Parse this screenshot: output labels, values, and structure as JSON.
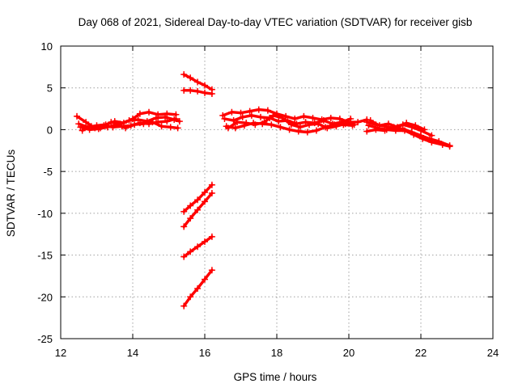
{
  "chart_data": {
    "type": "scatter",
    "title": "Day 068 of 2021, Sidereal Day-to-day VTEC variation (SDTVAR) for receiver gisb",
    "xlabel": "GPS time / hours",
    "ylabel": "SDTVAR / TECUs",
    "xlim": [
      12,
      24
    ],
    "ylim": [
      -25,
      10
    ],
    "xticks": [
      12,
      14,
      16,
      18,
      20,
      22,
      24
    ],
    "yticks": [
      -25,
      -20,
      -15,
      -10,
      -5,
      0,
      5,
      10
    ],
    "grid": true,
    "legend": "none",
    "marker": "plus",
    "colors": {
      "series": "#ff0000",
      "grid": "#a0a0a0",
      "frame": "#000000"
    },
    "series": [
      {
        "points": [
          [
            12.45,
            1.6
          ],
          [
            12.7,
            0.9
          ],
          [
            12.95,
            0.2
          ],
          [
            13.2,
            0.5
          ],
          [
            13.45,
            0.3
          ],
          [
            13.7,
            0.4
          ],
          [
            13.95,
            0.5
          ],
          [
            14.2,
            0.8
          ],
          [
            14.45,
            0.7
          ],
          [
            14.7,
            0.9
          ],
          [
            14.95,
            1.0
          ],
          [
            15.2,
            1.3
          ]
        ]
      },
      {
        "points": [
          [
            12.5,
            0.7
          ],
          [
            12.75,
            0.3
          ],
          [
            13.0,
            0.5
          ],
          [
            13.25,
            0.6
          ],
          [
            13.5,
            1.0
          ],
          [
            13.75,
            0.8
          ],
          [
            14.0,
            1.3
          ],
          [
            14.2,
            1.9
          ],
          [
            14.45,
            2.1
          ],
          [
            14.7,
            1.8
          ],
          [
            14.95,
            1.9
          ],
          [
            15.2,
            1.8
          ]
        ]
      },
      {
        "points": [
          [
            12.55,
            0.3
          ],
          [
            12.8,
            0.0
          ],
          [
            13.05,
            0.1
          ],
          [
            13.3,
            0.3
          ],
          [
            13.55,
            0.6
          ],
          [
            13.8,
            0.2
          ],
          [
            14.05,
            0.6
          ],
          [
            14.3,
            0.7
          ],
          [
            14.55,
            0.9
          ],
          [
            14.8,
            0.4
          ],
          [
            15.05,
            0.3
          ],
          [
            15.25,
            0.2
          ]
        ]
      },
      {
        "points": [
          [
            12.6,
            -0.1
          ],
          [
            12.85,
            0.4
          ],
          [
            13.1,
            0.2
          ],
          [
            13.4,
            0.9
          ],
          [
            13.65,
            0.7
          ],
          [
            13.9,
            1.1
          ],
          [
            14.15,
            1.2
          ],
          [
            14.4,
            1.0
          ],
          [
            14.65,
            1.4
          ],
          [
            14.9,
            1.5
          ],
          [
            15.15,
            1.2
          ],
          [
            15.3,
            1.0
          ]
        ]
      },
      {
        "points": [
          [
            15.42,
            6.6
          ],
          [
            15.6,
            6.2
          ],
          [
            15.8,
            5.7
          ],
          [
            16.0,
            5.3
          ],
          [
            16.2,
            4.8
          ]
        ]
      },
      {
        "points": [
          [
            15.42,
            4.7
          ],
          [
            15.6,
            4.7
          ],
          [
            15.8,
            4.6
          ],
          [
            16.0,
            4.4
          ],
          [
            16.2,
            4.3
          ]
        ]
      },
      {
        "points": [
          [
            15.42,
            -9.8
          ],
          [
            15.6,
            -9.1
          ],
          [
            15.8,
            -8.4
          ],
          [
            16.0,
            -7.5
          ],
          [
            16.2,
            -6.6
          ]
        ]
      },
      {
        "points": [
          [
            15.42,
            -11.6
          ],
          [
            15.6,
            -10.6
          ],
          [
            15.8,
            -9.6
          ],
          [
            16.0,
            -8.6
          ],
          [
            16.2,
            -7.6
          ]
        ]
      },
      {
        "points": [
          [
            15.42,
            -15.2
          ],
          [
            15.6,
            -14.6
          ],
          [
            15.8,
            -14.0
          ],
          [
            16.0,
            -13.4
          ],
          [
            16.2,
            -12.8
          ]
        ]
      },
      {
        "points": [
          [
            15.42,
            -21.1
          ],
          [
            15.6,
            -20.0
          ],
          [
            15.8,
            -19.0
          ],
          [
            16.0,
            -17.9
          ],
          [
            16.2,
            -16.8
          ]
        ]
      },
      {
        "points": [
          [
            16.5,
            1.7
          ],
          [
            16.75,
            2.1
          ],
          [
            17.0,
            2.0
          ],
          [
            17.25,
            2.2
          ],
          [
            17.5,
            2.4
          ],
          [
            17.75,
            2.3
          ],
          [
            18.0,
            1.9
          ],
          [
            18.25,
            1.6
          ],
          [
            18.5,
            1.3
          ],
          [
            18.75,
            1.6
          ],
          [
            19.0,
            1.4
          ],
          [
            19.25,
            1.2
          ],
          [
            19.5,
            1.4
          ],
          [
            19.75,
            1.3
          ],
          [
            20.0,
            0.9
          ],
          [
            20.25,
            0.9
          ],
          [
            20.5,
            1.2
          ]
        ]
      },
      {
        "points": [
          [
            16.55,
            1.3
          ],
          [
            16.8,
            1.1
          ],
          [
            17.05,
            1.5
          ],
          [
            17.3,
            1.7
          ],
          [
            17.55,
            1.5
          ],
          [
            17.8,
            1.4
          ],
          [
            18.05,
            1.0
          ],
          [
            18.3,
            1.1
          ],
          [
            18.55,
            0.7
          ],
          [
            18.8,
            0.9
          ],
          [
            19.05,
            0.8
          ],
          [
            19.3,
            1.1
          ],
          [
            19.55,
            0.7
          ],
          [
            19.8,
            0.9
          ],
          [
            20.05,
            1.3
          ]
        ]
      },
      {
        "points": [
          [
            16.6,
            0.4
          ],
          [
            16.85,
            0.2
          ],
          [
            17.1,
            0.5
          ],
          [
            17.35,
            0.8
          ],
          [
            17.6,
            0.7
          ],
          [
            17.85,
            0.6
          ],
          [
            18.1,
            0.3
          ],
          [
            18.35,
            0.0
          ],
          [
            18.6,
            -0.2
          ],
          [
            18.85,
            -0.3
          ],
          [
            19.1,
            -0.1
          ],
          [
            19.35,
            0.3
          ],
          [
            19.6,
            0.6
          ],
          [
            19.85,
            0.6
          ],
          [
            20.1,
            0.5
          ]
        ]
      },
      {
        "points": [
          [
            16.65,
            0.2
          ],
          [
            16.9,
            0.9
          ],
          [
            17.15,
            0.8
          ],
          [
            17.4,
            0.6
          ],
          [
            17.65,
            0.9
          ],
          [
            17.9,
            1.7
          ],
          [
            18.15,
            1.4
          ],
          [
            18.4,
            0.6
          ],
          [
            18.65,
            0.3
          ],
          [
            18.9,
            0.6
          ],
          [
            19.15,
            0.7
          ],
          [
            19.4,
            0.2
          ],
          [
            19.65,
            0.4
          ],
          [
            19.9,
            0.7
          ],
          [
            20.15,
            0.6
          ]
        ]
      },
      {
        "points": [
          [
            20.5,
            0.9
          ],
          [
            20.75,
            0.6
          ],
          [
            21.0,
            0.4
          ],
          [
            21.25,
            0.2
          ],
          [
            21.5,
            0.1
          ],
          [
            21.75,
            -0.3
          ],
          [
            22.0,
            -0.7
          ],
          [
            22.25,
            -1.1
          ],
          [
            22.5,
            -1.4
          ],
          [
            22.8,
            -1.9
          ]
        ]
      },
      {
        "points": [
          [
            20.5,
            -0.2
          ],
          [
            20.75,
            0.0
          ],
          [
            21.0,
            -0.1
          ],
          [
            21.25,
            0.3
          ],
          [
            21.5,
            0.6
          ],
          [
            21.75,
            0.3
          ],
          [
            22.0,
            -0.1
          ],
          [
            22.3,
            -0.7
          ]
        ]
      },
      {
        "points": [
          [
            20.55,
            0.5
          ],
          [
            20.8,
            0.2
          ],
          [
            21.05,
            0.0
          ],
          [
            21.3,
            -0.1
          ],
          [
            21.55,
            -0.1
          ],
          [
            21.8,
            -0.6
          ],
          [
            22.05,
            -1.1
          ],
          [
            22.3,
            -1.5
          ],
          [
            22.6,
            -1.8
          ],
          [
            22.8,
            -2.0
          ]
        ]
      },
      {
        "points": [
          [
            20.6,
            1.1
          ],
          [
            20.85,
            0.5
          ],
          [
            21.1,
            0.7
          ],
          [
            21.35,
            0.3
          ],
          [
            21.6,
            0.8
          ],
          [
            21.85,
            0.5
          ],
          [
            22.1,
            0.0
          ]
        ]
      }
    ]
  }
}
